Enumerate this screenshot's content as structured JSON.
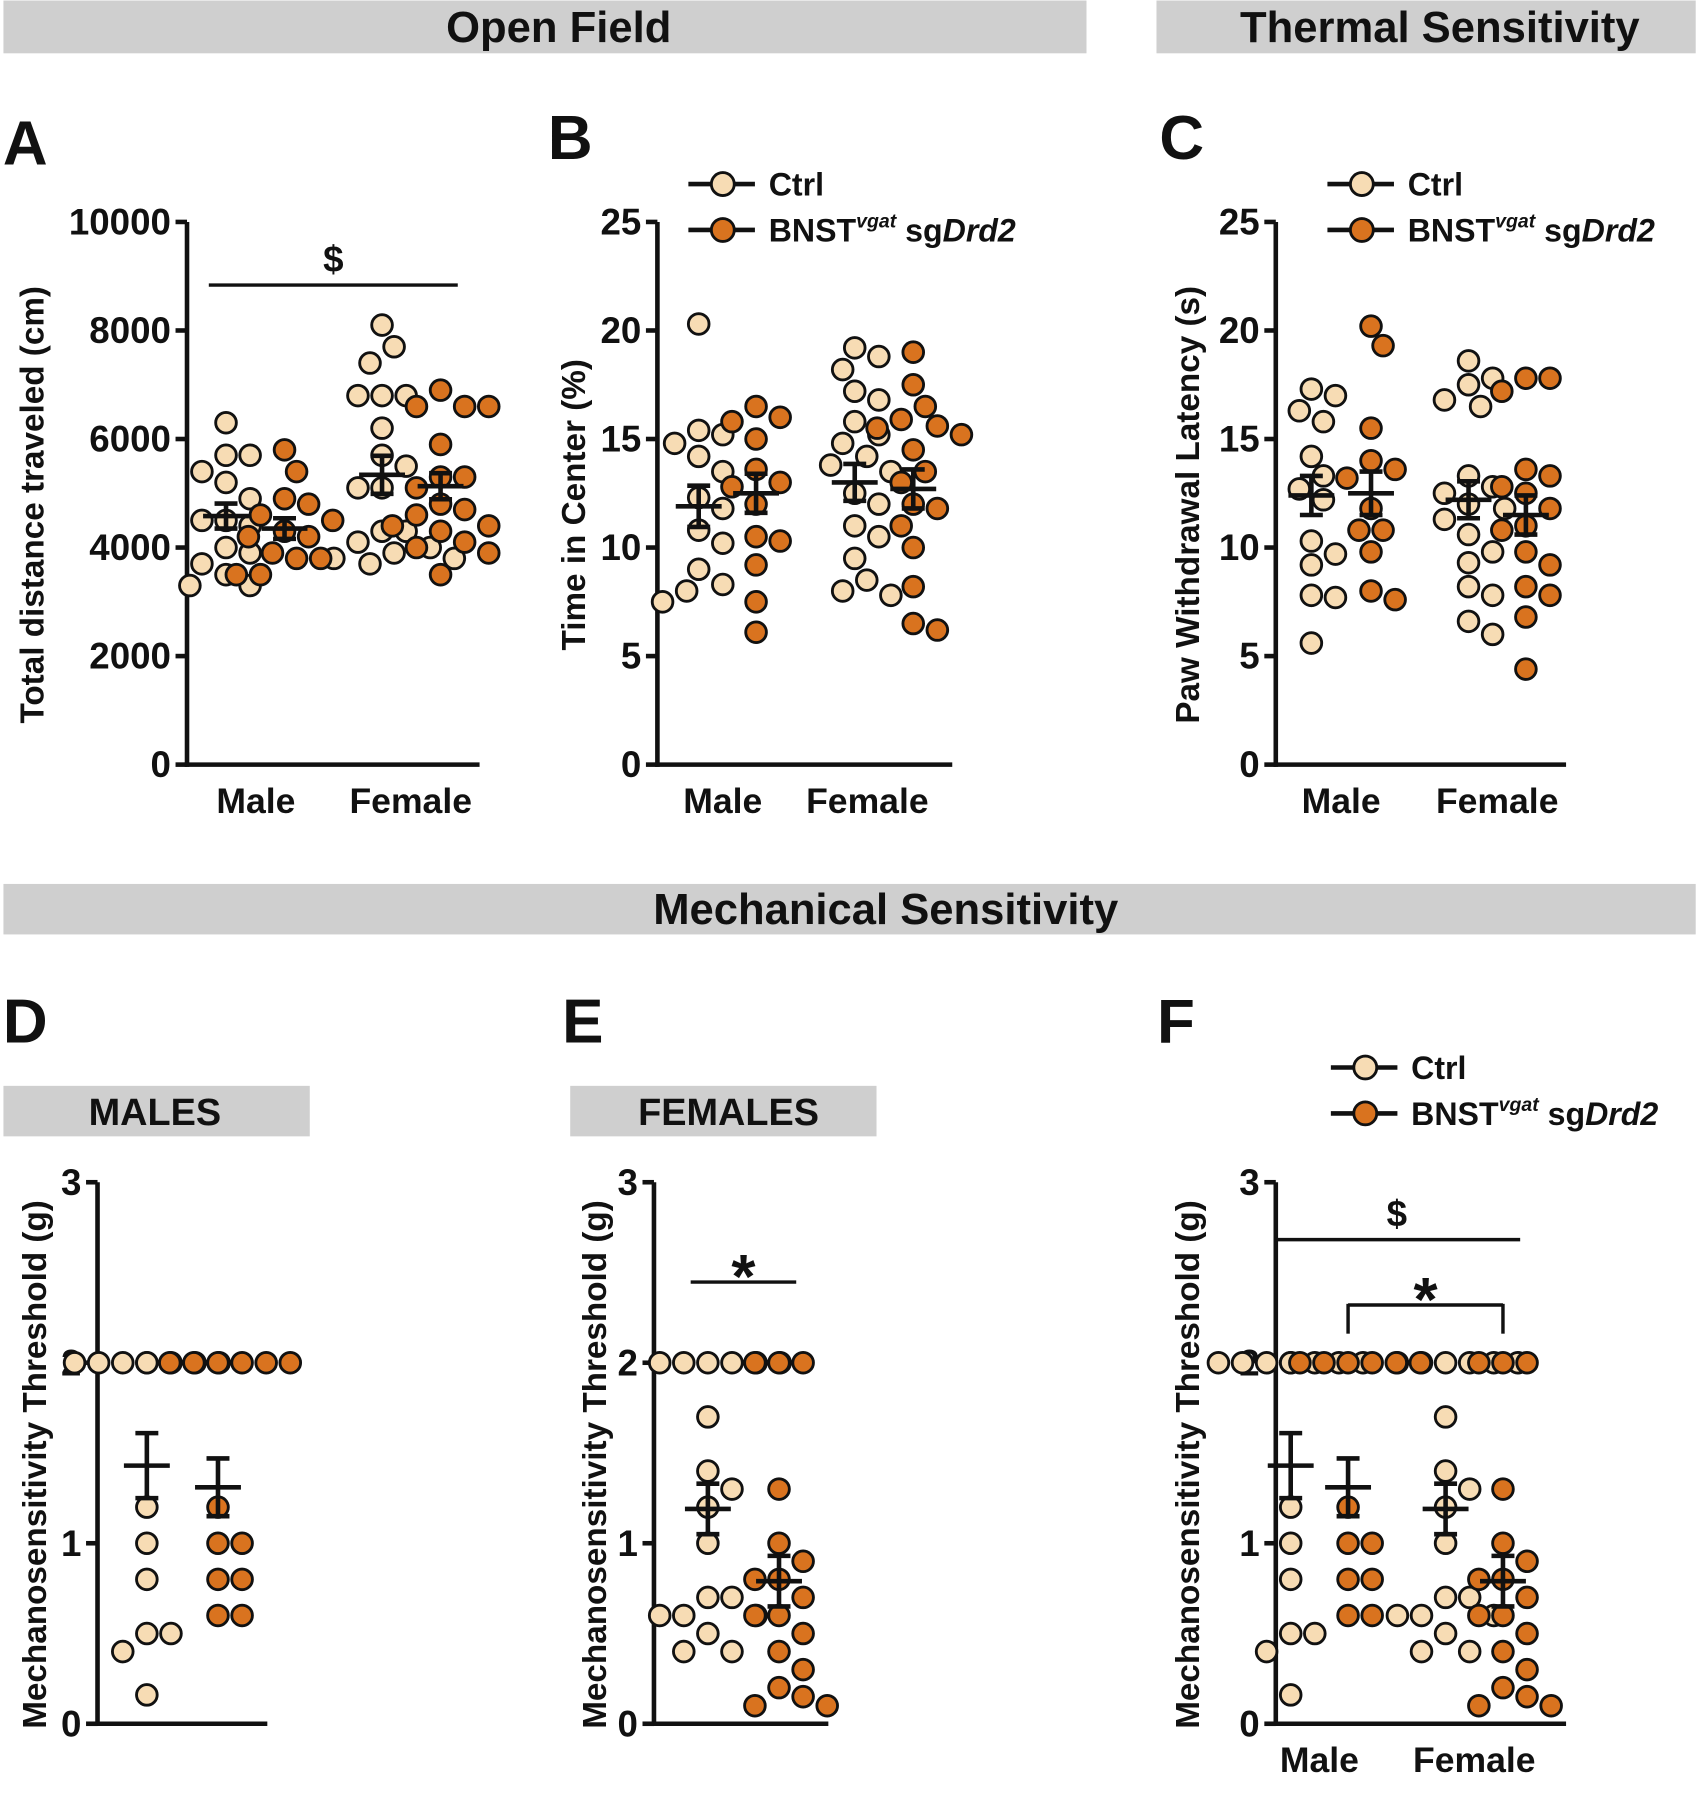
{
  "headers": {
    "open_field": "Open Field",
    "thermal": "Thermal Sensitivity",
    "mechanical": "Mechanical Sensitivity",
    "males": "MALES",
    "females": "FEMALES"
  },
  "colors": {
    "ctrl": "#f7dcb4",
    "treatment": "#d9731f",
    "header_bg": "#cfcfcf"
  },
  "legend": {
    "ctrl": "Ctrl",
    "treatment_base": "BNST",
    "treatment_sup": "vgat",
    "treatment_mid": " sg",
    "treatment_italic": "Drd2"
  },
  "chart_data": [
    {
      "panel": "A",
      "type": "scatter",
      "ylabel": "Total distance traveled (cm)",
      "ylim": [
        0,
        10000
      ],
      "yticks": [
        0,
        2000,
        4000,
        6000,
        8000,
        10000
      ],
      "categories": [
        "Male",
        "Female"
      ],
      "series": [
        {
          "color": "#f7dcb4",
          "values": [
            [
              6300,
              5700,
              5700,
              5400,
              5200,
              4900,
              4500,
              4500,
              4400,
              4000,
              3900,
              3700,
              3500,
              3300,
              3300
            ],
            [
              8100,
              7700,
              7400,
              6800,
              6800,
              6800,
              6200,
              5700,
              5500,
              5100,
              5100,
              4300,
              4300,
              4100,
              4000,
              3900,
              3800,
              3800,
              3700
            ]
          ],
          "mean": [
            4580,
            5340
          ],
          "sem": [
            230,
            350
          ]
        },
        {
          "color": "#d9731f",
          "values": [
            [
              5800,
              5400,
              4900,
              4800,
              4600,
              4500,
              4300,
              4200,
              4200,
              3900,
              3800,
              3800,
              3500,
              3500
            ],
            [
              6900,
              6600,
              6600,
              6600,
              5900,
              5300,
              5300,
              5100,
              4800,
              4700,
              4600,
              4400,
              4400,
              4300,
              4100,
              4000,
              3900,
              3500
            ]
          ],
          "mean": [
            4350,
            5130
          ],
          "sem": [
            190,
            240
          ]
        }
      ],
      "annotations": [
        {
          "text": "$",
          "from": [
            0,
            0
          ],
          "to": [
            1,
            1
          ],
          "bracket": false
        }
      ]
    },
    {
      "panel": "B",
      "type": "scatter",
      "ylabel": "Time in Center (%)",
      "ylim": [
        0,
        25
      ],
      "yticks": [
        0,
        5,
        10,
        15,
        20,
        25
      ],
      "categories": [
        "Male",
        "Female"
      ],
      "series": [
        {
          "name": "Ctrl",
          "color": "#f7dcb4",
          "values": [
            [
              20.3,
              15.4,
              15.2,
              14.8,
              14.2,
              13.5,
              12.3,
              11.8,
              10.8,
              10.2,
              9.0,
              8.3,
              8.0,
              7.5
            ],
            [
              19.2,
              18.8,
              18.2,
              17.2,
              16.8,
              15.8,
              15.2,
              14.8,
              14.2,
              13.8,
              13.5,
              12.5,
              12.0,
              11.0,
              10.5,
              9.5,
              8.5,
              8.0,
              7.8
            ]
          ],
          "mean": [
            11.9,
            13.0
          ],
          "sem": [
            0.95,
            0.85
          ]
        },
        {
          "name": "BNST vgat sgDrd2",
          "color": "#d9731f",
          "values": [
            [
              16.5,
              16.0,
              15.8,
              15.0,
              13.6,
              13.0,
              12.8,
              12.0,
              10.5,
              10.3,
              9.2,
              7.5,
              6.1
            ],
            [
              19.0,
              17.5,
              16.5,
              15.9,
              15.6,
              15.5,
              15.2,
              14.5,
              13.5,
              13.0,
              12.0,
              11.8,
              11.0,
              10.0,
              8.2,
              6.5,
              6.2
            ]
          ],
          "mean": [
            12.5,
            12.7
          ],
          "sem": [
            0.9,
            0.9
          ]
        }
      ],
      "annotations": []
    },
    {
      "panel": "C",
      "type": "scatter",
      "ylabel": "Paw Withdrawal Latency (s)",
      "ylim": [
        0,
        25
      ],
      "yticks": [
        0,
        5,
        10,
        15,
        20,
        25
      ],
      "categories": [
        "Male",
        "Female"
      ],
      "series": [
        {
          "name": "Ctrl",
          "color": "#f7dcb4",
          "values": [
            [
              17.3,
              17.0,
              16.3,
              15.8,
              14.2,
              13.3,
              12.7,
              12.2,
              10.3,
              9.7,
              9.2,
              7.8,
              7.7,
              5.6
            ],
            [
              18.6,
              17.8,
              17.5,
              16.8,
              16.5,
              13.3,
              12.8,
              12.5,
              12.0,
              11.8,
              11.3,
              10.6,
              9.8,
              9.3,
              8.2,
              7.8,
              6.6,
              6.0
            ]
          ],
          "mean": [
            12.4,
            12.2
          ],
          "sem": [
            0.9,
            0.85
          ]
        },
        {
          "name": "BNST vgat sgDrd2",
          "color": "#d9731f",
          "values": [
            [
              20.2,
              19.3,
              15.5,
              14.0,
              13.6,
              13.2,
              11.8,
              10.8,
              10.8,
              9.8,
              8.0,
              7.6
            ],
            [
              17.8,
              17.8,
              17.2,
              13.6,
              13.3,
              12.8,
              12.5,
              11.8,
              11.0,
              10.8,
              9.8,
              9.2,
              8.2,
              7.8,
              6.8,
              4.4
            ]
          ],
          "mean": [
            12.5,
            11.5
          ],
          "sem": [
            1.0,
            0.9
          ]
        }
      ],
      "annotations": []
    },
    {
      "panel": "D",
      "type": "scatter",
      "ylabel": "Mechanosensitivity Threshold (g)",
      "ylim": [
        0,
        3
      ],
      "yticks": [
        0,
        1,
        2,
        3
      ],
      "categories": [
        ""
      ],
      "series": [
        {
          "color": "#f7dcb4",
          "values": [
            [
              2,
              2,
              2,
              2,
              2,
              2,
              2,
              2,
              1.2,
              1.0,
              0.8,
              0.5,
              0.5,
              0.4,
              0.16
            ]
          ],
          "mean": [
            1.43
          ],
          "sem": [
            0.18
          ]
        },
        {
          "color": "#d9731f",
          "values": [
            [
              2,
              2,
              2,
              2,
              2,
              2,
              1.2,
              1.0,
              1.0,
              0.8,
              0.8,
              0.6,
              0.6
            ]
          ],
          "mean": [
            1.31
          ],
          "sem": [
            0.16
          ]
        }
      ],
      "annotations": []
    },
    {
      "panel": "E",
      "type": "scatter",
      "ylabel": "Mechanosensitivity Threshold (g)",
      "ylim": [
        0,
        3
      ],
      "yticks": [
        0,
        1,
        2,
        3
      ],
      "categories": [
        ""
      ],
      "series": [
        {
          "color": "#f7dcb4",
          "values": [
            [
              2,
              2,
              2,
              2,
              2,
              2,
              1.7,
              1.4,
              1.3,
              1.2,
              1.0,
              0.7,
              0.7,
              0.6,
              0.6,
              0.6,
              0.5,
              0.4,
              0.4
            ]
          ],
          "mean": [
            1.19
          ],
          "sem": [
            0.14
          ]
        },
        {
          "color": "#d9731f",
          "values": [
            [
              2,
              2,
              2,
              1.3,
              1.0,
              0.9,
              0.8,
              0.8,
              0.7,
              0.6,
              0.6,
              0.5,
              0.4,
              0.3,
              0.2,
              0.15,
              0.1,
              0.1
            ]
          ],
          "mean": [
            0.79
          ],
          "sem": [
            0.14
          ]
        }
      ],
      "annotations": [
        {
          "text": "*",
          "from": [
            0,
            0
          ],
          "to": [
            0,
            1
          ],
          "bracket": false
        }
      ]
    },
    {
      "panel": "F",
      "type": "scatter",
      "ylabel": "Mechanosensitivity Threshold (g)",
      "ylim": [
        0,
        3
      ],
      "yticks": [
        0,
        1,
        2,
        3
      ],
      "categories": [
        "Male",
        "Female"
      ],
      "series": [
        {
          "name": "Ctrl",
          "color": "#f7dcb4",
          "values": [
            [
              2,
              2,
              2,
              2,
              2,
              2,
              2,
              2,
              1.2,
              1.0,
              0.8,
              0.5,
              0.5,
              0.4,
              0.16
            ],
            [
              2,
              2,
              2,
              2,
              2,
              2,
              1.7,
              1.4,
              1.3,
              1.2,
              1.0,
              0.7,
              0.7,
              0.6,
              0.6,
              0.6,
              0.5,
              0.4,
              0.4
            ]
          ],
          "mean": [
            1.43,
            1.19
          ],
          "sem": [
            0.18,
            0.14
          ]
        },
        {
          "name": "BNST vgat sgDrd2",
          "color": "#d9731f",
          "values": [
            [
              2,
              2,
              2,
              2,
              2,
              2,
              1.2,
              1.0,
              1.0,
              0.8,
              0.8,
              0.6,
              0.6
            ],
            [
              2,
              2,
              2,
              1.3,
              1.0,
              0.9,
              0.8,
              0.8,
              0.7,
              0.6,
              0.6,
              0.5,
              0.4,
              0.3,
              0.2,
              0.15,
              0.1,
              0.1
            ]
          ],
          "mean": [
            1.31,
            0.79
          ],
          "sem": [
            0.16,
            0.14
          ]
        }
      ],
      "annotations": [
        {
          "text": "$",
          "from": [
            0,
            0
          ],
          "to": [
            1,
            1
          ],
          "bracket": false
        },
        {
          "text": "*",
          "from": [
            0,
            1
          ],
          "to": [
            1,
            1
          ],
          "bracket": true
        }
      ]
    }
  ]
}
